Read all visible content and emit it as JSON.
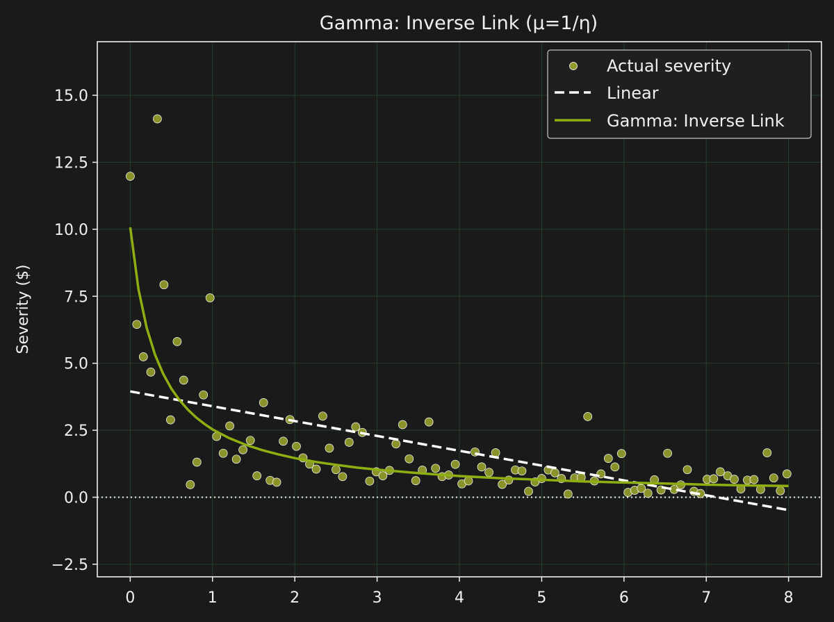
{
  "chart_data": {
    "type": "scatter",
    "title": "Gamma: Inverse Link (μ=1/η)",
    "xlabel": "",
    "ylabel": "Severity ($)",
    "xlim": [
      -0.4,
      8.4
    ],
    "ylim": [
      -2.97,
      17.0
    ],
    "xticks": [
      0,
      1,
      2,
      3,
      4,
      5,
      6,
      7,
      8
    ],
    "yticks": [
      -2.5,
      0.0,
      2.5,
      5.0,
      7.5,
      10.0,
      12.5,
      15.0
    ],
    "grid": true,
    "legend_position": "top-right",
    "reference_line_y": 0.0,
    "colors": {
      "background": "#1a1a1a",
      "scatter": "#8f9a2a",
      "fit": "#8fae12",
      "linear": "#ffffff",
      "grid": "#24402a"
    },
    "series": [
      {
        "name": "Actual severity",
        "kind": "scatter",
        "x": [
          0.0,
          0.08,
          0.16,
          0.25,
          0.33,
          0.41,
          0.49,
          0.57,
          0.65,
          0.73,
          0.81,
          0.89,
          0.97,
          1.05,
          1.13,
          1.21,
          1.29,
          1.37,
          1.46,
          1.54,
          1.62,
          1.7,
          1.78,
          1.86,
          1.94,
          2.02,
          2.1,
          2.18,
          2.26,
          2.34,
          2.42,
          2.5,
          2.58,
          2.66,
          2.74,
          2.82,
          2.91,
          2.99,
          3.07,
          3.15,
          3.23,
          3.31,
          3.39,
          3.47,
          3.55,
          3.63,
          3.71,
          3.79,
          3.87,
          3.95,
          4.03,
          4.11,
          4.19,
          4.27,
          4.36,
          4.44,
          4.52,
          4.6,
          4.68,
          4.76,
          4.84,
          4.92,
          5.0,
          5.08,
          5.16,
          5.24,
          5.32,
          5.4,
          5.48,
          5.56,
          5.64,
          5.72,
          5.81,
          5.89,
          5.97,
          6.05,
          6.13,
          6.21,
          6.29,
          6.37,
          6.45,
          6.53,
          6.61,
          6.69,
          6.77,
          6.85,
          6.93,
          7.01,
          7.09,
          7.17,
          7.26,
          7.34,
          7.42,
          7.5,
          7.58,
          7.66,
          7.74,
          7.82,
          7.9,
          7.98
        ],
        "y": [
          11.98,
          6.45,
          5.24,
          4.67,
          14.12,
          7.93,
          2.89,
          5.81,
          4.37,
          0.47,
          1.31,
          3.82,
          7.44,
          2.27,
          1.64,
          2.66,
          1.42,
          1.77,
          2.12,
          0.8,
          3.53,
          0.63,
          0.56,
          2.09,
          2.9,
          1.9,
          1.47,
          1.24,
          1.05,
          3.03,
          1.83,
          1.03,
          0.77,
          2.05,
          2.63,
          2.42,
          0.6,
          0.95,
          0.8,
          1.0,
          1.99,
          2.71,
          1.43,
          0.62,
          1.01,
          2.81,
          1.08,
          0.77,
          0.83,
          1.23,
          0.5,
          0.61,
          1.69,
          1.13,
          0.93,
          1.66,
          0.48,
          0.64,
          1.02,
          0.98,
          0.22,
          0.57,
          0.7,
          1.02,
          0.91,
          0.7,
          0.12,
          0.72,
          0.74,
          3.01,
          0.61,
          0.87,
          1.45,
          1.13,
          1.63,
          0.18,
          0.26,
          0.33,
          0.15,
          0.65,
          0.27,
          1.64,
          0.29,
          0.46,
          1.03,
          0.22,
          0.14,
          0.67,
          0.69,
          0.95,
          0.8,
          0.67,
          0.31,
          0.64,
          0.66,
          0.29,
          1.66,
          0.72,
          0.24,
          0.87
        ]
      },
      {
        "name": "Linear",
        "kind": "line",
        "style": "dashed",
        "x": [
          0,
          8
        ],
        "y": [
          3.95,
          -0.48
        ]
      },
      {
        "name": "Gamma: Inverse Link",
        "kind": "line",
        "style": "solid",
        "x": [
          0.0,
          0.1,
          0.2,
          0.3,
          0.4,
          0.5,
          0.6,
          0.7,
          0.8,
          0.9,
          1.0,
          1.2,
          1.4,
          1.6,
          1.8,
          2.0,
          2.25,
          2.5,
          2.75,
          3.0,
          3.5,
          4.0,
          4.5,
          5.0,
          5.5,
          6.0,
          6.5,
          7.0,
          7.5,
          8.0
        ],
        "y": [
          10.07,
          7.77,
          6.33,
          5.33,
          4.61,
          4.05,
          3.62,
          3.27,
          2.98,
          2.74,
          2.53,
          2.21,
          1.96,
          1.76,
          1.6,
          1.46,
          1.32,
          1.21,
          1.11,
          1.03,
          0.9,
          0.79,
          0.71,
          0.65,
          0.59,
          0.55,
          0.51,
          0.47,
          0.44,
          0.42
        ]
      }
    ]
  }
}
